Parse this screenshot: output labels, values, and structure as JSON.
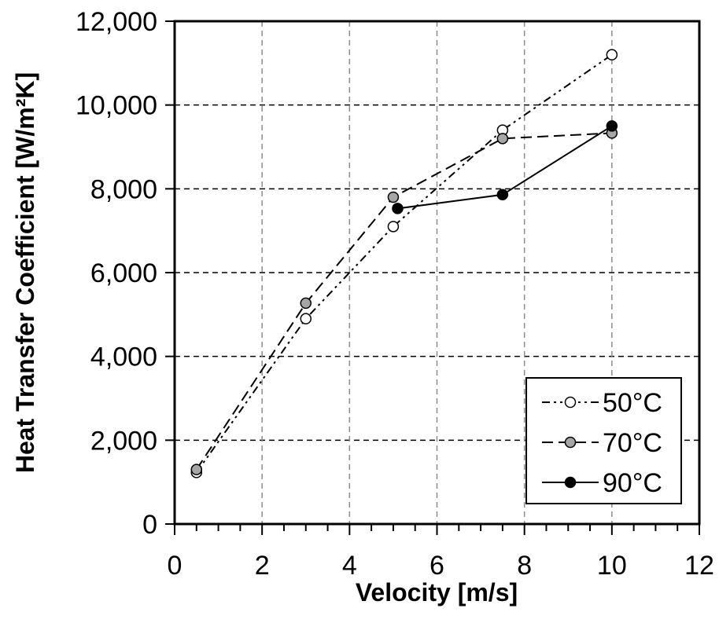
{
  "chart_data": {
    "type": "line",
    "title": "",
    "xlabel": "Velocity [m/s]",
    "ylabel": "Heat Transfer Coefficient [W/m²K]",
    "xlim": [
      0,
      12
    ],
    "ylim": [
      0,
      12000
    ],
    "x_ticks": [
      0,
      2,
      4,
      6,
      8,
      10,
      12
    ],
    "y_ticks": [
      0,
      2000,
      4000,
      6000,
      8000,
      10000,
      12000
    ],
    "x_tick_labels": [
      "0",
      "2",
      "4",
      "6",
      "8",
      "10",
      "12"
    ],
    "y_tick_labels": [
      "0",
      "2,000",
      "4,000",
      "6,000",
      "8,000",
      "10,000",
      "12,000"
    ],
    "x_minor_step": 0.5,
    "grid": true,
    "legend_position": "bottom-right",
    "series": [
      {
        "name": "50°C",
        "line_style": "dash-dot-dot",
        "marker_fill": "#ffffff",
        "x": [
          0.5,
          3,
          5,
          7.5,
          10
        ],
        "y": [
          1230,
          4900,
          7100,
          9400,
          11200
        ]
      },
      {
        "name": "70°C",
        "line_style": "dashed",
        "marker_fill": "#a6a6a6",
        "x": [
          0.5,
          3,
          5,
          7.5,
          10
        ],
        "y": [
          1300,
          5270,
          7800,
          9200,
          9330
        ]
      },
      {
        "name": "90°C",
        "line_style": "solid",
        "marker_fill": "#000000",
        "x": [
          5.1,
          7.5,
          10
        ],
        "y": [
          7530,
          7860,
          9500
        ]
      }
    ]
  }
}
